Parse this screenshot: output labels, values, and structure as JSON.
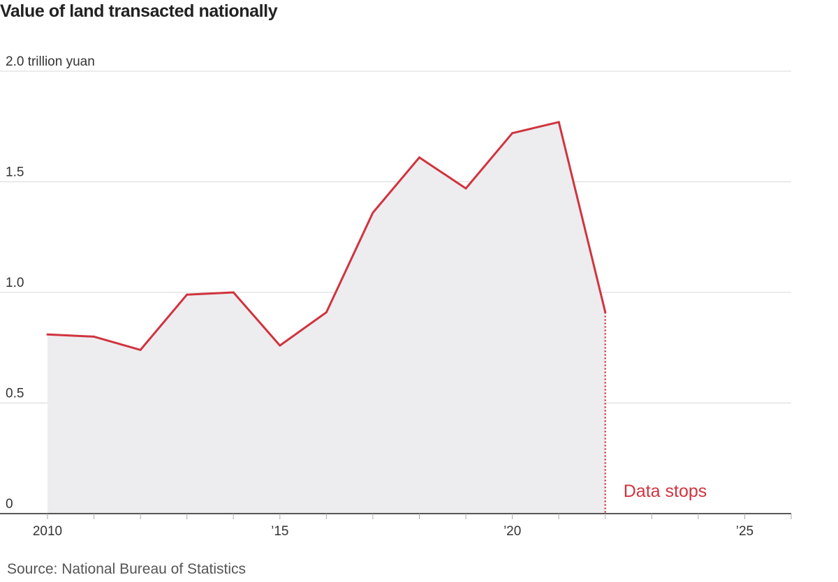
{
  "chart_data": {
    "type": "area",
    "title": "Value of land transacted nationally",
    "y_unit_label": "2.0 trillion yuan",
    "x": [
      2010,
      2011,
      2012,
      2013,
      2014,
      2015,
      2016,
      2017,
      2018,
      2019,
      2020,
      2021,
      2022
    ],
    "series": [
      {
        "values": [
          0.81,
          0.8,
          0.74,
          0.99,
          1.0,
          0.76,
          0.91,
          1.36,
          1.61,
          1.47,
          1.72,
          1.77,
          0.91
        ]
      }
    ],
    "ylim": [
      0,
      2.0
    ],
    "xlim": [
      2010,
      2026
    ],
    "y_ticks": [
      {
        "value": 2.0,
        "label": "2.0 trillion yuan"
      },
      {
        "value": 1.5,
        "label": "1.5"
      },
      {
        "value": 1.0,
        "label": "1.0"
      },
      {
        "value": 0.5,
        "label": "0.5"
      },
      {
        "value": 0,
        "label": "0"
      }
    ],
    "x_ticks": [
      {
        "value": 2010,
        "label": "2010"
      },
      {
        "value": 2015,
        "label": "’15"
      },
      {
        "value": 2020,
        "label": "’20"
      },
      {
        "value": 2025,
        "label": "’25"
      }
    ],
    "annotation": {
      "x": 2022,
      "text": "Data stops"
    },
    "grid": true,
    "source": "Source: National Bureau of Statistics",
    "colors": {
      "line": "#d0343f",
      "area": "#ededef",
      "grid": "#d9d9d9",
      "axis": "#222222"
    }
  }
}
